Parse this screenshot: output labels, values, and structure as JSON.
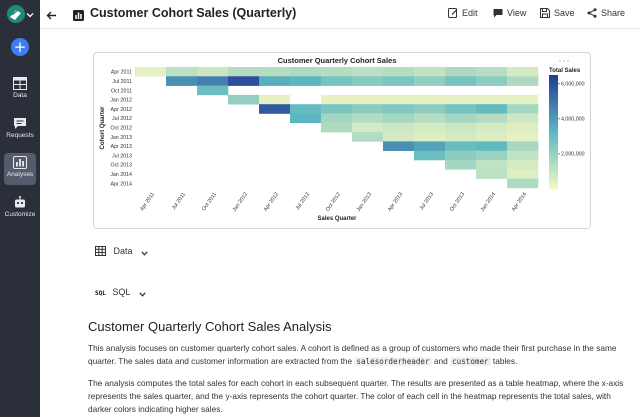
{
  "header": {
    "title": "Customer Cohort Sales (Quarterly)",
    "edit_label": "Edit",
    "view_label": "View",
    "save_label": "Save",
    "share_label": "Share"
  },
  "sidebar": {
    "items": [
      {
        "label": "Data"
      },
      {
        "label": "Requests"
      },
      {
        "label": "Analyses"
      },
      {
        "label": "Customize"
      }
    ]
  },
  "sections": {
    "data_label": "Data",
    "sql_tag": "SQL",
    "sql_label": "SQL"
  },
  "content": {
    "title": "Customer Quarterly Cohort Sales Analysis",
    "p1_a": "This analysis focuses on customer quarterly cohort sales. A cohort is defined as a group of customers who made their first purchase in the same quarter. The sales data and customer information are extracted from the ",
    "p1_code1": "salesorderheader",
    "p1_mid": " and ",
    "p1_code2": "customer",
    "p1_end": " tables.",
    "p2": "The analysis computes the total sales for each cohort in each subsequent quarter. The results are presented as a table heatmap, where the x-axis represents the sales quarter, and the y-axis represents the cohort quarter. The color of each cell in the heatmap represents the total sales, with darker colors indicating higher sales."
  },
  "chart_data": {
    "type": "heatmap",
    "title": "Customer Quarterly Cohort Sales",
    "xlabel": "Sales Quarter",
    "ylabel": "Cohort Quarter",
    "x": [
      "Apr 2011",
      "Jul 2011",
      "Oct 2011",
      "Jan 2012",
      "Apr 2012",
      "Jul 2012",
      "Oct 2012",
      "Jan 2013",
      "Apr 2013",
      "Jul 2013",
      "Oct 2013",
      "Jan 2014",
      "Apr 2014"
    ],
    "y": [
      "Apr 2011",
      "Jul 2011",
      "Oct 2011",
      "Jan 2012",
      "Apr 2012",
      "Jul 2012",
      "Oct 2012",
      "Jan 2013",
      "Apr 2013",
      "Jul 2013",
      "Oct 2013",
      "Jan 2014",
      "Apr 2014"
    ],
    "values": [
      [
        350000,
        1200000,
        900000,
        1400000,
        1350000,
        1500000,
        1350000,
        1200000,
        1350000,
        1100000,
        1500000,
        1300000,
        700000
      ],
      [
        null,
        4300000,
        4700000,
        6000000,
        3500000,
        3300000,
        2700000,
        2300000,
        2600000,
        2100000,
        2700000,
        2200000,
        1500000
      ],
      [
        null,
        null,
        2900000,
        null,
        null,
        null,
        null,
        null,
        null,
        null,
        null,
        null,
        null
      ],
      [
        null,
        null,
        null,
        2100000,
        300000,
        null,
        300000,
        300000,
        300000,
        300000,
        300000,
        300000,
        300000
      ],
      [
        null,
        null,
        null,
        null,
        5700000,
        3100000,
        2600000,
        2300000,
        2500000,
        2200000,
        2700000,
        3100000,
        1700000
      ],
      [
        null,
        null,
        null,
        null,
        null,
        3300000,
        1700000,
        1400000,
        1700000,
        1300000,
        1700000,
        1400000,
        800000
      ],
      [
        null,
        null,
        null,
        null,
        null,
        null,
        1500000,
        700000,
        900000,
        700000,
        900000,
        700000,
        500000
      ],
      [
        null,
        null,
        null,
        null,
        null,
        null,
        null,
        1400000,
        700000,
        500000,
        700000,
        500000,
        300000
      ],
      [
        null,
        null,
        null,
        null,
        null,
        null,
        null,
        null,
        4300000,
        3800000,
        3000000,
        3200000,
        1600000
      ],
      [
        null,
        null,
        null,
        null,
        null,
        null,
        null,
        null,
        null,
        2900000,
        2200000,
        1900000,
        1100000
      ],
      [
        null,
        null,
        null,
        null,
        null,
        null,
        null,
        null,
        null,
        null,
        1700000,
        1100000,
        700000
      ],
      [
        null,
        null,
        null,
        null,
        null,
        null,
        null,
        null,
        null,
        null,
        null,
        1200000,
        500000
      ],
      [
        null,
        null,
        null,
        null,
        null,
        null,
        null,
        null,
        null,
        null,
        null,
        null,
        1500000
      ]
    ],
    "colorbar": {
      "title": "Total Sales",
      "range": [
        0,
        6500000
      ],
      "ticks": [
        2000000,
        4000000,
        6000000
      ],
      "tick_labels": [
        "2,000,000",
        "4,000,000",
        "6,000,000"
      ]
    },
    "colors": {
      "low": "#f4f8c4",
      "mid": "#5cb8c0",
      "high": "#243b97"
    }
  }
}
